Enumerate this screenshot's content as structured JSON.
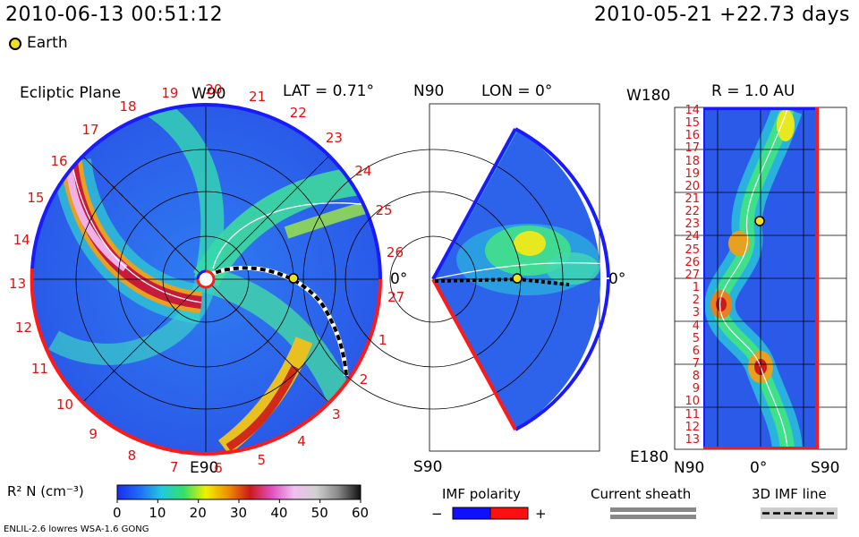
{
  "header": {
    "timestamp": "2010-06-13 00:51:12",
    "reference": "2010-05-21 +22.73 days",
    "legend_earth": "Earth"
  },
  "ecliptic": {
    "title": "Ecliptic Plane",
    "lat": "LAT = 0.71°",
    "top": "W90",
    "bottom": "E90",
    "right": "0°",
    "carrington": [
      "20",
      "21",
      "22",
      "23",
      "24",
      "25",
      "26",
      "27",
      "1",
      "2",
      "3",
      "4",
      "5",
      "6",
      "7",
      "8",
      "9",
      "10",
      "11",
      "12",
      "13",
      "14",
      "15",
      "16",
      "17",
      "18",
      "19"
    ]
  },
  "meridional": {
    "top_left": "N90",
    "lon": "LON = 0°",
    "right": "0°",
    "bottom_left": "S90"
  },
  "sphere": {
    "top_left": "W180",
    "radius": "R = 1.0 AU",
    "bottom_left": "E180",
    "bottom_axis": [
      "N90",
      "0°",
      "S90"
    ],
    "rows": [
      "14",
      "15",
      "16",
      "17",
      "18",
      "19",
      "20",
      "21",
      "22",
      "23",
      "24",
      "25",
      "26",
      "27",
      "1",
      "2",
      "3",
      "4",
      "5",
      "6",
      "7",
      "8",
      "9",
      "10",
      "11",
      "12",
      "13"
    ]
  },
  "colorbar": {
    "label": "R² N (cm⁻³)",
    "ticks": [
      "0",
      "10",
      "20",
      "30",
      "40",
      "50",
      "60"
    ],
    "colors": [
      "#1b2cf0",
      "#1f6cf4",
      "#22c8e0",
      "#33e06a",
      "#f0f000",
      "#f09000",
      "#cc1a1a",
      "#e050c0",
      "#f0c0f0",
      "#d0d0d0",
      "#888888",
      "#101010"
    ]
  },
  "legends": {
    "imf_polarity": "IMF polarity",
    "minus": "−",
    "plus": "+",
    "current_sheath": "Current sheath",
    "imf_line": "3D IMF line",
    "neg_color": "#1010ff",
    "pos_color": "#ff1010"
  },
  "footer": {
    "model": "ENLIL-2.6 lowres WSA-1.6 GONG"
  }
}
